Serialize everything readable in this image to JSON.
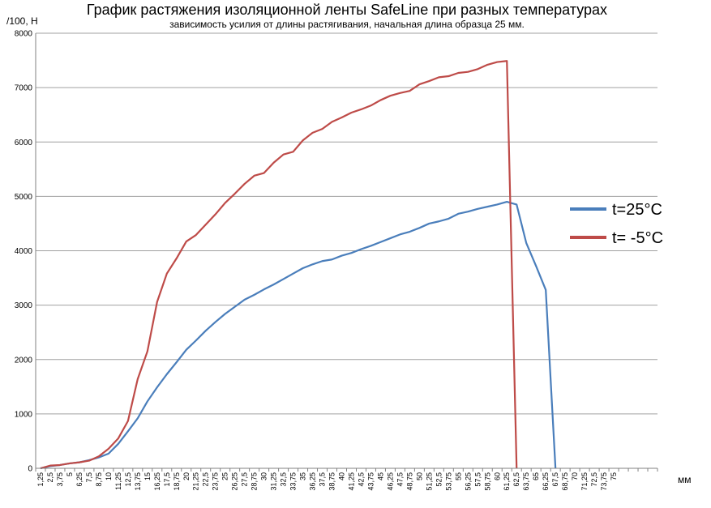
{
  "chart_data": {
    "type": "line",
    "title": "График растяжения изоляционной ленты SafeLine при разных температурах",
    "subtitle": "зависимость усилия от длины растягивания, начальная длина образца 25 мм.",
    "y_label": "/100, Н",
    "x_label": "мм",
    "categories": [
      "1,25",
      "2,5",
      "3,75",
      "5",
      "6,25",
      "7,5",
      "8,75",
      "10",
      "11,25",
      "12,5",
      "13,75",
      "15",
      "16,25",
      "17,5",
      "18,75",
      "20",
      "21,25",
      "22,5",
      "23,75",
      "25",
      "26,25",
      "27,5",
      "28,75",
      "30",
      "31,25",
      "32,5",
      "33,75",
      "35",
      "36,25",
      "37,5",
      "38,75",
      "40",
      "41,25",
      "42,5",
      "43,75",
      "45",
      "46,25",
      "47,5",
      "48,75",
      "50",
      "51,25",
      "52,5",
      "53,75",
      "55",
      "56,25",
      "57,5",
      "58,75",
      "60",
      "61,25",
      "62,5",
      "63,75",
      "65",
      "66,25",
      "67,5",
      "68,75",
      "70",
      "71,25",
      "72,5",
      "73,75",
      "75",
      null,
      null,
      null,
      null
    ],
    "series": [
      {
        "name": "t=25°C",
        "color": "#4a7ebb",
        "values": [
          0,
          40,
          60,
          90,
          110,
          150,
          200,
          270,
          450,
          680,
          920,
          1230,
          1490,
          1730,
          1950,
          2180,
          2350,
          2530,
          2690,
          2840,
          2970,
          3100,
          3190,
          3290,
          3380,
          3480,
          3580,
          3680,
          3750,
          3810,
          3840,
          3910,
          3960,
          4030,
          4090,
          4160,
          4230,
          4300,
          4350,
          4420,
          4500,
          4540,
          4590,
          4680,
          4720,
          4770,
          4810,
          4850,
          4900,
          4850,
          4140,
          3720,
          3280,
          0,
          null,
          null,
          null,
          null,
          null,
          null,
          null,
          null,
          null,
          null
        ]
      },
      {
        "name": "t= -5°C",
        "color": "#be4b48",
        "values": [
          0,
          50,
          60,
          90,
          110,
          140,
          220,
          360,
          550,
          870,
          1640,
          2150,
          3060,
          3580,
          3860,
          4170,
          4290,
          4480,
          4670,
          4880,
          5050,
          5230,
          5380,
          5430,
          5620,
          5770,
          5820,
          6030,
          6170,
          6240,
          6370,
          6450,
          6540,
          6600,
          6670,
          6770,
          6850,
          6900,
          6940,
          7060,
          7120,
          7190,
          7210,
          7270,
          7290,
          7340,
          7420,
          7470,
          7490,
          0,
          null,
          null,
          null,
          null,
          null,
          null,
          null,
          null,
          null,
          null,
          null,
          null,
          null,
          null
        ]
      }
    ],
    "ylim": [
      0,
      8000
    ],
    "yticks": [
      0,
      1000,
      2000,
      3000,
      4000,
      5000,
      6000,
      7000,
      8000
    ],
    "grid": true,
    "legend": "right"
  }
}
